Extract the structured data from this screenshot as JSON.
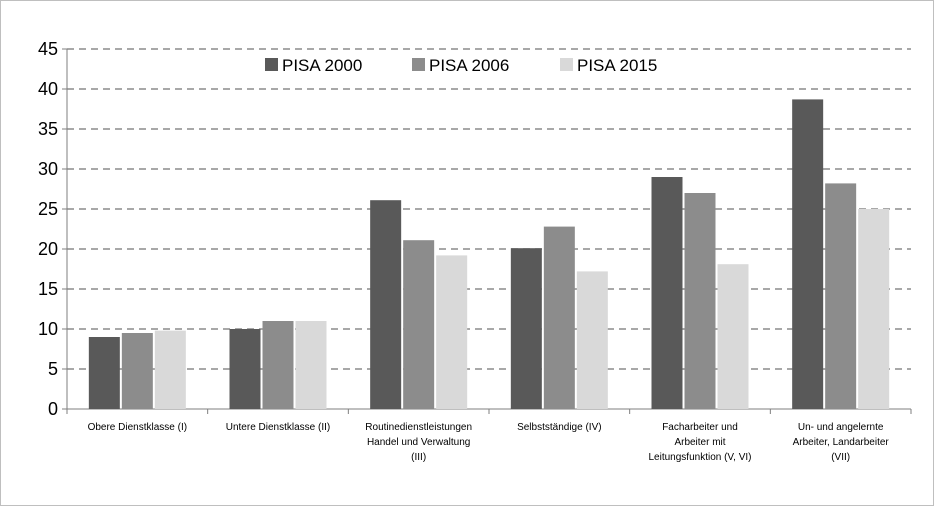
{
  "chart_data": {
    "type": "bar",
    "categories": [
      [
        "Obere Dienstklasse (I)"
      ],
      [
        "Untere Dienstklasse (II)"
      ],
      [
        "Routinedienstleistungen",
        "Handel und Verwaltung",
        "(III)"
      ],
      [
        "Selbstständige (IV)"
      ],
      [
        "Facharbeiter und",
        "Arbeiter mit",
        "Leitungsfunktion (V, VI)"
      ],
      [
        "Un- und angelernte",
        "Arbeiter, Landarbeiter",
        "(VII)"
      ]
    ],
    "series": [
      {
        "name": "PISA 2000",
        "color": "#595959",
        "values": [
          9,
          10,
          26.1,
          20.1,
          29,
          38.7
        ]
      },
      {
        "name": "PISA 2006",
        "color": "#8c8c8c",
        "values": [
          9.5,
          11,
          21.1,
          22.8,
          27,
          28.2
        ]
      },
      {
        "name": "PISA 2015",
        "color": "#d9d9d9",
        "values": [
          9.8,
          11,
          19.2,
          17.2,
          18.1,
          25
        ]
      }
    ],
    "ylim": [
      0,
      45
    ],
    "yticks": [
      0,
      5,
      10,
      15,
      20,
      25,
      30,
      35,
      40,
      45
    ],
    "grid": true,
    "legend_position": "top-center",
    "title": "",
    "xlabel": "",
    "ylabel": ""
  }
}
